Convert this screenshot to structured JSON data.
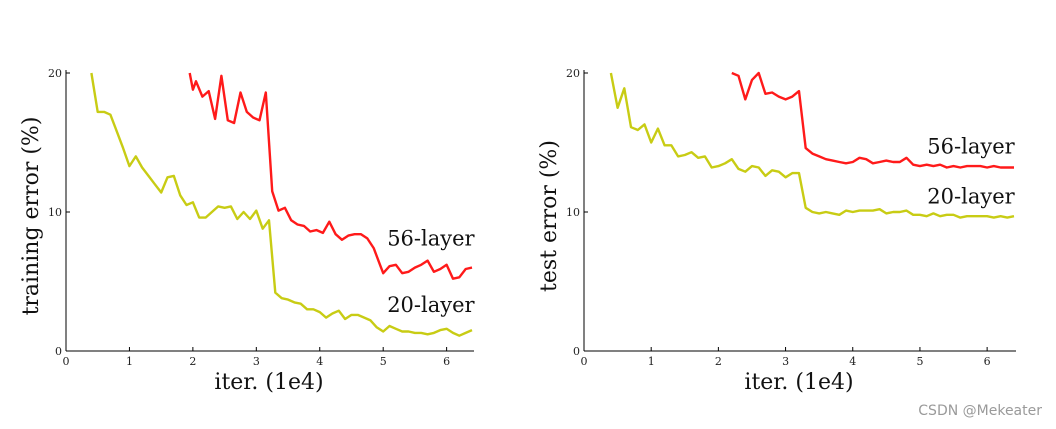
{
  "watermark": "CSDN @Mekeater",
  "colors": {
    "red": "#ff1a1a",
    "yellow": "#c8cc14",
    "axis": "#000000"
  },
  "chart_data": [
    {
      "type": "line",
      "title": "",
      "xlabel": "iter. (1e4)",
      "ylabel": "training error (%)",
      "xlim": [
        0,
        6.4
      ],
      "ylim": [
        0,
        20
      ],
      "xticks": [
        "0",
        "1",
        "2",
        "3",
        "4",
        "5",
        "6"
      ],
      "yticks": [
        "0",
        "10",
        "20"
      ],
      "grid": false,
      "series": [
        {
          "name": "56-layer",
          "color": "#ff1a1a",
          "label_at": [
            5.0,
            7.6
          ],
          "points": [
            [
              1.95,
              20.0
            ],
            [
              2.0,
              18.8
            ],
            [
              2.05,
              19.4
            ],
            [
              2.15,
              18.3
            ],
            [
              2.25,
              18.7
            ],
            [
              2.35,
              16.7
            ],
            [
              2.45,
              19.8
            ],
            [
              2.55,
              16.6
            ],
            [
              2.65,
              16.4
            ],
            [
              2.75,
              18.6
            ],
            [
              2.85,
              17.2
            ],
            [
              2.95,
              16.8
            ],
            [
              3.05,
              16.6
            ],
            [
              3.15,
              18.6
            ],
            [
              3.25,
              11.5
            ],
            [
              3.35,
              10.1
            ],
            [
              3.45,
              10.3
            ],
            [
              3.55,
              9.4
            ],
            [
              3.65,
              9.1
            ],
            [
              3.75,
              9.0
            ],
            [
              3.85,
              8.6
            ],
            [
              3.95,
              8.7
            ],
            [
              4.05,
              8.5
            ],
            [
              4.15,
              9.3
            ],
            [
              4.25,
              8.4
            ],
            [
              4.35,
              8.0
            ],
            [
              4.45,
              8.3
            ],
            [
              4.55,
              8.4
            ],
            [
              4.65,
              8.4
            ],
            [
              4.75,
              8.1
            ],
            [
              4.85,
              7.4
            ],
            [
              4.95,
              6.2
            ],
            [
              5.0,
              5.6
            ],
            [
              5.1,
              6.1
            ],
            [
              5.2,
              6.2
            ],
            [
              5.3,
              5.6
            ],
            [
              5.4,
              5.7
            ],
            [
              5.5,
              6.0
            ],
            [
              5.6,
              6.2
            ],
            [
              5.7,
              6.5
            ],
            [
              5.8,
              5.7
            ],
            [
              5.9,
              5.9
            ],
            [
              6.0,
              6.2
            ],
            [
              6.1,
              5.2
            ],
            [
              6.2,
              5.3
            ],
            [
              6.3,
              5.9
            ],
            [
              6.4,
              6.0
            ]
          ]
        },
        {
          "name": "20-layer",
          "color": "#c8cc14",
          "label_at": [
            5.0,
            2.8
          ],
          "points": [
            [
              0.4,
              20.0
            ],
            [
              0.5,
              17.2
            ],
            [
              0.6,
              17.2
            ],
            [
              0.7,
              17.0
            ],
            [
              0.8,
              15.8
            ],
            [
              0.9,
              14.6
            ],
            [
              1.0,
              13.3
            ],
            [
              1.1,
              14.0
            ],
            [
              1.2,
              13.2
            ],
            [
              1.3,
              12.6
            ],
            [
              1.4,
              12.0
            ],
            [
              1.5,
              11.4
            ],
            [
              1.6,
              12.5
            ],
            [
              1.7,
              12.6
            ],
            [
              1.8,
              11.2
            ],
            [
              1.9,
              10.5
            ],
            [
              2.0,
              10.7
            ],
            [
              2.1,
              9.6
            ],
            [
              2.2,
              9.6
            ],
            [
              2.3,
              10.0
            ],
            [
              2.4,
              10.4
            ],
            [
              2.5,
              10.3
            ],
            [
              2.6,
              10.4
            ],
            [
              2.7,
              9.5
            ],
            [
              2.8,
              10.0
            ],
            [
              2.9,
              9.5
            ],
            [
              3.0,
              10.1
            ],
            [
              3.1,
              8.8
            ],
            [
              3.2,
              9.4
            ],
            [
              3.3,
              4.2
            ],
            [
              3.4,
              3.8
            ],
            [
              3.5,
              3.7
            ],
            [
              3.6,
              3.5
            ],
            [
              3.7,
              3.4
            ],
            [
              3.8,
              3.0
            ],
            [
              3.9,
              3.0
            ],
            [
              4.0,
              2.8
            ],
            [
              4.1,
              2.4
            ],
            [
              4.2,
              2.7
            ],
            [
              4.3,
              2.9
            ],
            [
              4.4,
              2.3
            ],
            [
              4.5,
              2.6
            ],
            [
              4.6,
              2.6
            ],
            [
              4.7,
              2.4
            ],
            [
              4.8,
              2.2
            ],
            [
              4.9,
              1.7
            ],
            [
              5.0,
              1.4
            ],
            [
              5.1,
              1.8
            ],
            [
              5.2,
              1.6
            ],
            [
              5.3,
              1.4
            ],
            [
              5.4,
              1.4
            ],
            [
              5.5,
              1.3
            ],
            [
              5.6,
              1.3
            ],
            [
              5.7,
              1.2
            ],
            [
              5.8,
              1.3
            ],
            [
              5.9,
              1.5
            ],
            [
              6.0,
              1.6
            ],
            [
              6.1,
              1.3
            ],
            [
              6.2,
              1.1
            ],
            [
              6.3,
              1.3
            ],
            [
              6.4,
              1.5
            ]
          ]
        }
      ]
    },
    {
      "type": "line",
      "title": "",
      "xlabel": "iter. (1e4)",
      "ylabel": "test error (%)",
      "xlim": [
        0,
        6.4
      ],
      "ylim": [
        0,
        20
      ],
      "xticks": [
        "0",
        "1",
        "2",
        "3",
        "4",
        "5",
        "6"
      ],
      "yticks": [
        "0",
        "10",
        "20"
      ],
      "grid": false,
      "series": [
        {
          "name": "56-layer",
          "color": "#ff1a1a",
          "label_at": [
            5.05,
            14.2
          ],
          "points": [
            [
              2.2,
              20.0
            ],
            [
              2.3,
              19.8
            ],
            [
              2.4,
              18.1
            ],
            [
              2.5,
              19.5
            ],
            [
              2.6,
              20.0
            ],
            [
              2.7,
              18.5
            ],
            [
              2.8,
              18.6
            ],
            [
              2.9,
              18.3
            ],
            [
              3.0,
              18.1
            ],
            [
              3.1,
              18.3
            ],
            [
              3.2,
              18.7
            ],
            [
              3.3,
              14.6
            ],
            [
              3.4,
              14.2
            ],
            [
              3.5,
              14.0
            ],
            [
              3.6,
              13.8
            ],
            [
              3.7,
              13.7
            ],
            [
              3.8,
              13.6
            ],
            [
              3.9,
              13.5
            ],
            [
              4.0,
              13.6
            ],
            [
              4.1,
              13.9
            ],
            [
              4.2,
              13.8
            ],
            [
              4.3,
              13.5
            ],
            [
              4.4,
              13.6
            ],
            [
              4.5,
              13.7
            ],
            [
              4.6,
              13.6
            ],
            [
              4.7,
              13.6
            ],
            [
              4.8,
              13.9
            ],
            [
              4.9,
              13.4
            ],
            [
              5.0,
              13.3
            ],
            [
              5.1,
              13.4
            ],
            [
              5.2,
              13.3
            ],
            [
              5.3,
              13.4
            ],
            [
              5.4,
              13.2
            ],
            [
              5.5,
              13.3
            ],
            [
              5.6,
              13.2
            ],
            [
              5.7,
              13.3
            ],
            [
              5.8,
              13.3
            ],
            [
              5.9,
              13.3
            ],
            [
              6.0,
              13.2
            ],
            [
              6.1,
              13.3
            ],
            [
              6.2,
              13.2
            ],
            [
              6.3,
              13.2
            ],
            [
              6.4,
              13.2
            ]
          ]
        },
        {
          "name": "20-layer",
          "color": "#c8cc14",
          "label_at": [
            5.05,
            10.6
          ],
          "points": [
            [
              0.4,
              20.0
            ],
            [
              0.5,
              17.5
            ],
            [
              0.6,
              18.9
            ],
            [
              0.7,
              16.1
            ],
            [
              0.8,
              15.9
            ],
            [
              0.9,
              16.3
            ],
            [
              1.0,
              15.0
            ],
            [
              1.1,
              16.0
            ],
            [
              1.2,
              14.8
            ],
            [
              1.3,
              14.8
            ],
            [
              1.4,
              14.0
            ],
            [
              1.5,
              14.1
            ],
            [
              1.6,
              14.3
            ],
            [
              1.7,
              13.9
            ],
            [
              1.8,
              14.0
            ],
            [
              1.9,
              13.2
            ],
            [
              2.0,
              13.3
            ],
            [
              2.1,
              13.5
            ],
            [
              2.2,
              13.8
            ],
            [
              2.3,
              13.1
            ],
            [
              2.4,
              12.9
            ],
            [
              2.5,
              13.3
            ],
            [
              2.6,
              13.2
            ],
            [
              2.7,
              12.6
            ],
            [
              2.8,
              13.0
            ],
            [
              2.9,
              12.9
            ],
            [
              3.0,
              12.5
            ],
            [
              3.1,
              12.8
            ],
            [
              3.2,
              12.8
            ],
            [
              3.3,
              10.3
            ],
            [
              3.4,
              10.0
            ],
            [
              3.5,
              9.9
            ],
            [
              3.6,
              10.0
            ],
            [
              3.7,
              9.9
            ],
            [
              3.8,
              9.8
            ],
            [
              3.9,
              10.1
            ],
            [
              4.0,
              10.0
            ],
            [
              4.1,
              10.1
            ],
            [
              4.2,
              10.1
            ],
            [
              4.3,
              10.1
            ],
            [
              4.4,
              10.2
            ],
            [
              4.5,
              9.9
            ],
            [
              4.6,
              10.0
            ],
            [
              4.7,
              10.0
            ],
            [
              4.8,
              10.1
            ],
            [
              4.9,
              9.8
            ],
            [
              5.0,
              9.8
            ],
            [
              5.1,
              9.7
            ],
            [
              5.2,
              9.9
            ],
            [
              5.3,
              9.7
            ],
            [
              5.4,
              9.8
            ],
            [
              5.5,
              9.8
            ],
            [
              5.6,
              9.6
            ],
            [
              5.7,
              9.7
            ],
            [
              5.8,
              9.7
            ],
            [
              5.9,
              9.7
            ],
            [
              6.0,
              9.7
            ],
            [
              6.1,
              9.6
            ],
            [
              6.2,
              9.7
            ],
            [
              6.3,
              9.6
            ],
            [
              6.4,
              9.7
            ]
          ]
        }
      ]
    }
  ]
}
